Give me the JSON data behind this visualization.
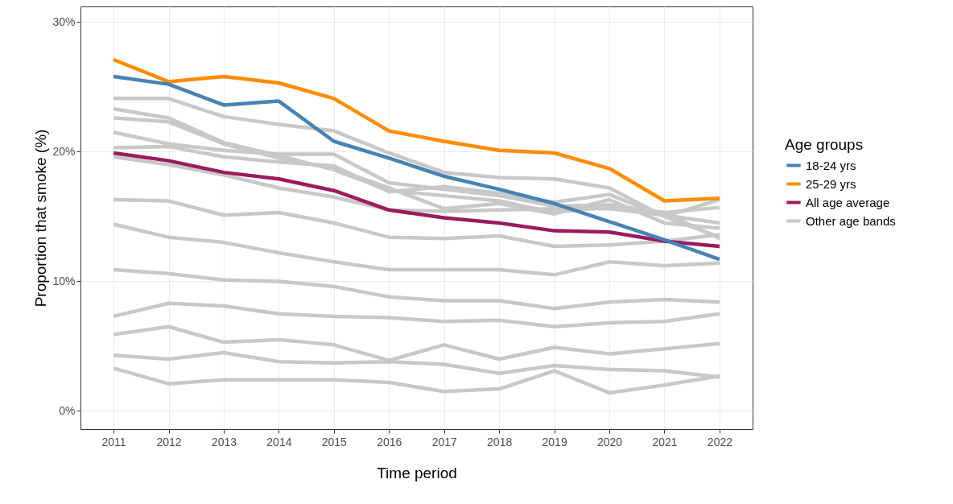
{
  "chart_data": {
    "type": "line",
    "xlabel": "Time period",
    "ylabel": "Proportion that smoke (%)",
    "legend_title": "Age groups",
    "legend": "right",
    "grid": true,
    "line_style": "solid",
    "x": [
      2011,
      2012,
      2013,
      2014,
      2015,
      2016,
      2017,
      2018,
      2019,
      2020,
      2021,
      2022
    ],
    "xlim": [
      2010.4,
      2022.6
    ],
    "xticks": [
      2011,
      2012,
      2013,
      2014,
      2015,
      2016,
      2017,
      2018,
      2019,
      2020,
      2021,
      2022
    ],
    "ylim": [
      -1.4,
      31.2
    ],
    "yticks": [
      {
        "value": 0,
        "label": "0%"
      },
      {
        "value": 10,
        "label": "10%"
      },
      {
        "value": 20,
        "label": "20%"
      },
      {
        "value": 30,
        "label": "30%"
      }
    ],
    "series": [
      {
        "name": "18-24 yrs",
        "color": "#4682b4",
        "values": [
          25.8,
          25.2,
          23.6,
          23.9,
          20.8,
          19.5,
          18.1,
          17.1,
          16.0,
          14.6,
          13.2,
          11.7
        ]
      },
      {
        "name": "25-29 yrs",
        "color": "#ff8c00",
        "values": [
          27.1,
          25.4,
          25.8,
          25.3,
          24.1,
          21.6,
          20.8,
          20.1,
          19.9,
          18.7,
          16.2,
          16.4
        ]
      },
      {
        "name": "All age average",
        "color": "#9b1b5e",
        "values": [
          19.9,
          19.3,
          18.4,
          17.9,
          17.0,
          15.5,
          14.9,
          14.5,
          13.9,
          13.8,
          13.1,
          12.7
        ]
      },
      {
        "name": "Other age bands",
        "color": "#c8c8c8",
        "values": [
          24.1,
          24.1,
          22.7,
          22.1,
          21.6,
          19.9,
          18.4,
          18.0,
          17.9,
          17.2,
          15.0,
          13.4
        ]
      },
      {
        "color": "#c8c8c8",
        "values": [
          23.3,
          22.6,
          20.7,
          19.7,
          18.6,
          17.0,
          16.6,
          16.2,
          15.3,
          15.8,
          15.3,
          13.3
        ]
      },
      {
        "color": "#c8c8c8",
        "values": [
          22.6,
          22.3,
          20.6,
          19.5,
          18.7,
          17.2,
          15.6,
          16.0,
          15.2,
          16.3,
          14.5,
          14.1
        ]
      },
      {
        "color": "#c8c8c8",
        "values": [
          21.5,
          20.6,
          20.1,
          19.8,
          19.8,
          17.6,
          17.1,
          16.6,
          15.8,
          15.9,
          15.3,
          15.7
        ]
      },
      {
        "color": "#c8c8c8",
        "values": [
          20.3,
          20.4,
          19.6,
          19.2,
          18.9,
          16.9,
          17.3,
          16.8,
          16.1,
          16.7,
          15.0,
          16.3
        ]
      },
      {
        "color": "#c8c8c8",
        "values": [
          19.6,
          19.0,
          18.2,
          17.2,
          16.5,
          15.5,
          15.4,
          15.5,
          15.6,
          15.6,
          15.1,
          14.5
        ]
      },
      {
        "color": "#c8c8c8",
        "values": [
          16.3,
          16.2,
          15.1,
          15.3,
          14.5,
          13.4,
          13.3,
          13.5,
          12.7,
          12.8,
          13.1,
          13.6
        ]
      },
      {
        "color": "#c8c8c8",
        "values": [
          14.4,
          13.4,
          13.0,
          12.2,
          11.5,
          10.9,
          10.9,
          10.9,
          10.5,
          11.5,
          11.2,
          11.4
        ]
      },
      {
        "color": "#c8c8c8",
        "values": [
          10.9,
          10.6,
          10.1,
          10.0,
          9.6,
          8.8,
          8.5,
          8.5,
          7.9,
          8.4,
          8.6,
          8.4
        ]
      },
      {
        "color": "#c8c8c8",
        "values": [
          7.3,
          8.3,
          8.1,
          7.5,
          7.3,
          7.2,
          6.9,
          7.0,
          6.5,
          6.8,
          6.9,
          7.5
        ]
      },
      {
        "color": "#c8c8c8",
        "values": [
          5.9,
          6.5,
          5.3,
          5.5,
          5.1,
          3.9,
          5.1,
          4.0,
          4.9,
          4.4,
          4.8,
          5.2
        ]
      },
      {
        "color": "#c8c8c8",
        "values": [
          4.3,
          4.0,
          4.5,
          3.8,
          3.7,
          3.8,
          3.6,
          2.9,
          3.5,
          3.2,
          3.1,
          2.6
        ]
      },
      {
        "color": "#c8c8c8",
        "values": [
          3.3,
          2.1,
          2.4,
          2.4,
          2.4,
          2.2,
          1.5,
          1.7,
          3.1,
          1.4,
          2.0,
          2.7
        ]
      }
    ]
  }
}
